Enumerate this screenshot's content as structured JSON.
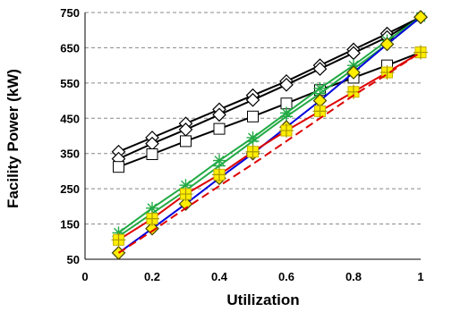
{
  "chart_data": {
    "type": "line",
    "xlabel": "Utilization",
    "ylabel": "Facility Power (kW)",
    "xlim": [
      0,
      1
    ],
    "ylim": [
      50,
      750
    ],
    "xticks": [
      0,
      0.2,
      0.4,
      0.6,
      0.8,
      1
    ],
    "xtick_labels": [
      "0",
      "0.2",
      "0.4",
      "0.6",
      "0.8",
      "1"
    ],
    "yticks": [
      50,
      150,
      250,
      350,
      450,
      550,
      650,
      750
    ],
    "ytick_labels": [
      "50",
      "150",
      "250",
      "350",
      "450",
      "550",
      "650",
      "750"
    ],
    "grid": "horizontal dashed",
    "legend": "none",
    "series": [
      {
        "color": "#000000",
        "marker": "diamond",
        "marker_fill": "#ffffff",
        "x": [
          0.1,
          0.2,
          0.3,
          0.4,
          0.5,
          0.6,
          0.7,
          0.8,
          0.9,
          1.0
        ],
        "values": [
          355,
          395,
          435,
          475,
          515,
          555,
          600,
          645,
          690,
          737
        ]
      },
      {
        "color": "#000000",
        "marker": "diamond",
        "marker_fill": "#ffffff",
        "x": [
          0.1,
          0.2,
          0.3,
          0.4,
          0.5,
          0.6,
          0.7,
          0.8,
          0.9,
          1.0
        ],
        "values": [
          335,
          378,
          418,
          460,
          502,
          545,
          590,
          635,
          680,
          737
        ]
      },
      {
        "color": "#000000",
        "marker": "square",
        "marker_fill": "#ffffff",
        "x": [
          0.1,
          0.2,
          0.3,
          0.4,
          0.5,
          0.6,
          0.7,
          0.8,
          0.9,
          1.0
        ],
        "values": [
          312,
          348,
          385,
          420,
          455,
          492,
          530,
          565,
          600,
          637
        ]
      },
      {
        "color": "#22aa44",
        "marker": "star",
        "marker_fill": "#22aa44",
        "x": [
          0.1,
          0.2,
          0.3,
          0.4,
          0.5,
          0.6,
          0.7,
          0.8,
          0.9,
          1.0
        ],
        "values": [
          125,
          195,
          260,
          330,
          395,
          465,
          535,
          600,
          670,
          737
        ]
      },
      {
        "color": "#22aa44",
        "marker": "plus",
        "marker_fill": "#22aa44",
        "x": [
          0.1,
          0.2,
          0.3,
          0.4,
          0.5,
          0.6,
          0.7,
          0.8,
          0.9,
          1.0
        ],
        "values": [
          115,
          180,
          245,
          315,
          385,
          455,
          520,
          590,
          660,
          737
        ]
      },
      {
        "color": "#0000dd",
        "marker": "diamond",
        "marker_fill": "#ffee00",
        "x": [
          0.1,
          0.2,
          0.3,
          0.4,
          0.5,
          0.6,
          0.7,
          0.8,
          0.9,
          1.0
        ],
        "values": [
          68,
          137,
          207,
          280,
          350,
          425,
          500,
          580,
          660,
          737
        ]
      },
      {
        "color": "#dd0000",
        "marker": "square-plus",
        "marker_fill": "#ffee00",
        "dashed": false,
        "x": [
          0.1,
          0.2,
          0.3,
          0.4,
          0.5,
          0.6,
          0.7,
          0.8,
          0.9,
          1.0
        ],
        "values": [
          105,
          165,
          235,
          290,
          355,
          415,
          470,
          525,
          580,
          637
        ]
      },
      {
        "color": "#dd0000",
        "marker": "none",
        "dashed": true,
        "x": [
          0.1,
          0.2,
          0.3,
          0.4,
          0.5,
          0.6,
          0.7,
          0.8,
          0.9,
          1.0
        ],
        "values": [
          68,
          130,
          195,
          258,
          320,
          385,
          450,
          515,
          575,
          637
        ]
      }
    ]
  }
}
